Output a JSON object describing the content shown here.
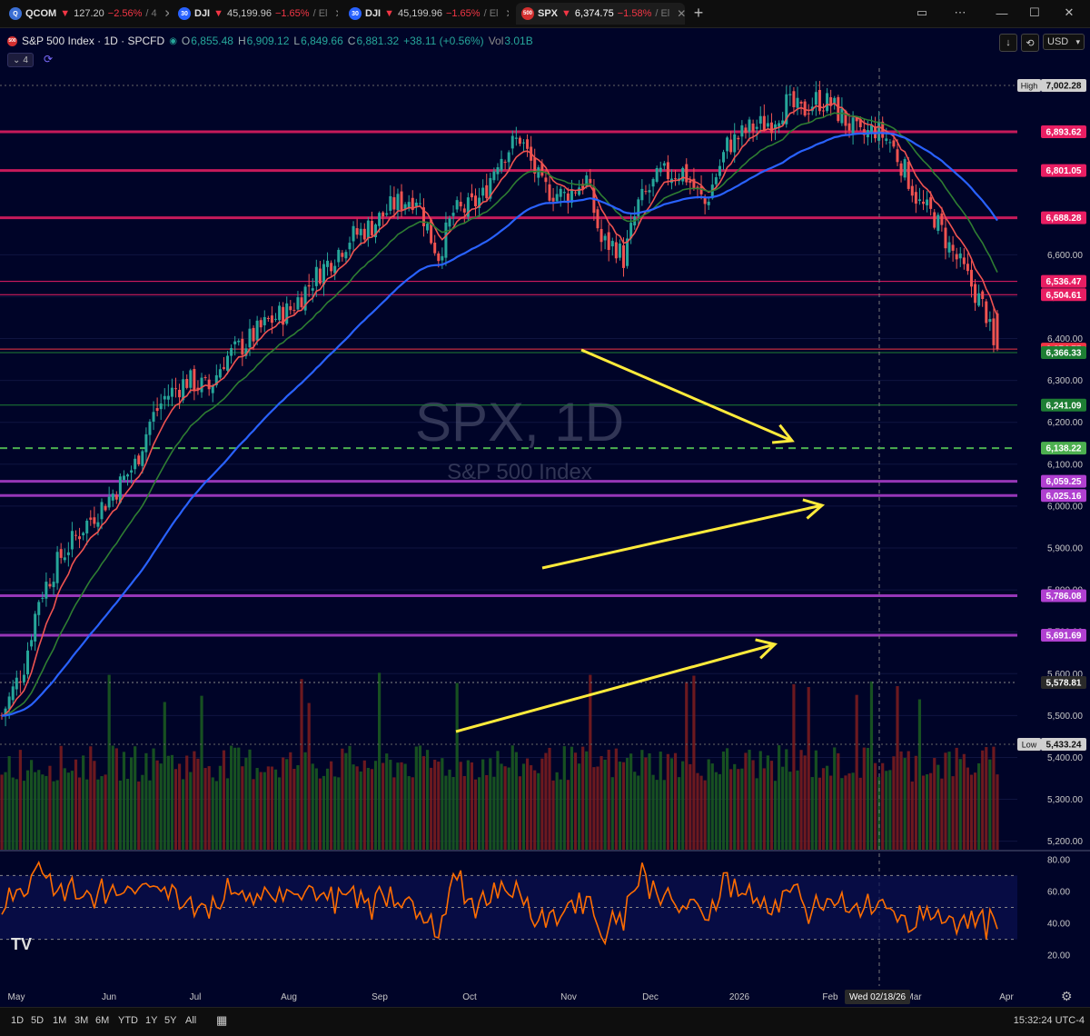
{
  "tabs": [
    {
      "symbol": "QCOM",
      "icon_text": "Q",
      "icon_color": "#3b6fd4",
      "price": "127.20",
      "change": "−2.56%",
      "rest": "/ 4",
      "active": false
    },
    {
      "symbol": "DJI",
      "icon_text": "30",
      "icon_color": "#2962ff",
      "price": "45,199.96",
      "change": "−1.65%",
      "rest": "/ El",
      "active": false
    },
    {
      "symbol": "DJI",
      "icon_text": "30",
      "icon_color": "#2962ff",
      "price": "45,199.96",
      "change": "−1.65%",
      "rest": "/ El",
      "active": false
    },
    {
      "symbol": "SPX",
      "icon_text": "500",
      "icon_color": "#d32f2f",
      "price": "6,374.75",
      "change": "−1.58%",
      "rest": "/ El",
      "active": true
    }
  ],
  "header": {
    "symbol_name": "S&P 500 Index · 1D · SPCFD",
    "o_label": "O",
    "o": "6,855.48",
    "h_label": "H",
    "h": "6,909.12",
    "l_label": "L",
    "l": "6,849.66",
    "c_label": "C",
    "c": "6,881.32",
    "chg": "+38.11 (+0.56%)",
    "vol_label": "Vol",
    "vol": "3.01B",
    "indicators_count": "4",
    "currency": "USD"
  },
  "chart_data": {
    "type": "candlestick",
    "title": "SPX, 1D",
    "subtitle": "S&P 500 Index",
    "y_axis_ticks": [
      6600,
      6500,
      6400,
      6300,
      6200,
      6100,
      6000,
      5900,
      5800,
      5700,
      5600,
      5500,
      5400,
      5300,
      5200
    ],
    "y_axis_tick_labels": [
      "6,600.00",
      "6,500.00",
      "6,400.00",
      "6,300.00",
      "6,200.00",
      "6,100.00",
      "6,000.00",
      "5,900.00",
      "5,800.00",
      "5,700.00",
      "5,600.00",
      "5,500.00",
      "5,400.00",
      "5,300.00",
      "5,200.00"
    ],
    "ylim": [
      5190,
      7050
    ],
    "x_month_labels": [
      "May",
      "Jun",
      "Jul",
      "Aug",
      "Sep",
      "Oct",
      "Nov",
      "Dec",
      "2026",
      "Feb",
      "Mar",
      "Apr"
    ],
    "high_marker": {
      "label": "High",
      "value": "7,002.28"
    },
    "low_marker": {
      "label": "Low",
      "value": "5,433.24"
    },
    "price_levels": [
      {
        "value": 6893.62,
        "label": "6,893.62",
        "color": "#e91e63",
        "style": "solid"
      },
      {
        "value": 6801.05,
        "label": "6,801.05",
        "color": "#e91e63",
        "style": "solid"
      },
      {
        "value": 6688.28,
        "label": "6,688.28",
        "color": "#e91e63",
        "style": "solid"
      },
      {
        "value": 6536.47,
        "label": "6,536.47",
        "color": "#e91e63",
        "style": "thin"
      },
      {
        "value": 6504.61,
        "label": "6,504.61",
        "color": "#e91e63",
        "style": "thin"
      },
      {
        "value": 6374.75,
        "label": "6,374.75",
        "color": "#f23645",
        "style": "current"
      },
      {
        "value": 6366.33,
        "label": "6,366.33",
        "color": "#1e7e34",
        "style": "thin"
      },
      {
        "value": 6241.09,
        "label": "6,241.09",
        "color": "#1e7e34",
        "style": "thin"
      },
      {
        "value": 6138.22,
        "label": "6,138.22",
        "color": "#4caf50",
        "style": "dashed"
      },
      {
        "value": 6059.25,
        "label": "6,059.25",
        "color": "#b040d0",
        "style": "solid"
      },
      {
        "value": 6025.16,
        "label": "6,025.16",
        "color": "#b040d0",
        "style": "solid"
      },
      {
        "value": 5786.08,
        "label": "5,786.08",
        "color": "#b040d0",
        "style": "solid"
      },
      {
        "value": 5691.69,
        "label": "5,691.69",
        "color": "#b040d0",
        "style": "solid"
      },
      {
        "value": 5578.81,
        "label": "5,578.81",
        "color": "#888888",
        "style": "dotted"
      }
    ],
    "price_path": [
      [
        0,
        5500
      ],
      [
        6,
        5620
      ],
      [
        10,
        5780
      ],
      [
        16,
        5880
      ],
      [
        22,
        5950
      ],
      [
        30,
        6030
      ],
      [
        36,
        6100
      ],
      [
        40,
        6200
      ],
      [
        44,
        6260
      ],
      [
        50,
        6300
      ],
      [
        56,
        6280
      ],
      [
        60,
        6350
      ],
      [
        66,
        6390
      ],
      [
        72,
        6440
      ],
      [
        78,
        6470
      ],
      [
        84,
        6540
      ],
      [
        88,
        6580
      ],
      [
        94,
        6640
      ],
      [
        100,
        6670
      ],
      [
        106,
        6720
      ],
      [
        112,
        6740
      ],
      [
        116,
        6640
      ],
      [
        118,
        6600
      ],
      [
        122,
        6700
      ],
      [
        126,
        6710
      ],
      [
        130,
        6740
      ],
      [
        134,
        6830
      ],
      [
        140,
        6880
      ],
      [
        146,
        6760
      ],
      [
        152,
        6740
      ],
      [
        158,
        6780
      ],
      [
        162,
        6630
      ],
      [
        166,
        6620
      ],
      [
        168,
        6590
      ],
      [
        172,
        6720
      ],
      [
        178,
        6790
      ],
      [
        184,
        6800
      ],
      [
        190,
        6720
      ],
      [
        196,
        6860
      ],
      [
        202,
        6900
      ],
      [
        208,
        6920
      ],
      [
        212,
        6960
      ],
      [
        216,
        6940
      ],
      [
        220,
        6970
      ],
      [
        224,
        6960
      ],
      [
        228,
        6920
      ],
      [
        232,
        6880
      ],
      [
        236,
        6900
      ],
      [
        240,
        6870
      ],
      [
        244,
        6800
      ],
      [
        248,
        6720
      ],
      [
        252,
        6690
      ],
      [
        256,
        6620
      ],
      [
        260,
        6560
      ],
      [
        263,
        6510
      ],
      [
        266,
        6460
      ],
      [
        268,
        6374.75
      ]
    ],
    "rsi": {
      "ylim": [
        15,
        85
      ],
      "ticks": [
        80,
        60,
        40,
        20
      ],
      "tick_labels": [
        "80.00",
        "60.00",
        "40.00",
        "20.00"
      ]
    },
    "colors": {
      "up": "#26a69a",
      "down": "#ef5350",
      "ema_fast": "#ef5350",
      "ema_mid": "#2e7d32",
      "ema_slow": "#2962ff",
      "rsi": "#ff6d00",
      "annotation_arrows": "#ffeb3b",
      "bg": "#000428"
    }
  },
  "time_axis": {
    "crosshair_date": "Wed 02/18/26"
  },
  "bottom_bar": {
    "ranges": [
      "1D",
      "5D",
      "1M",
      "3M",
      "6M",
      "YTD",
      "1Y",
      "5Y",
      "All"
    ],
    "clock": "15:32:24 UTC-4"
  }
}
